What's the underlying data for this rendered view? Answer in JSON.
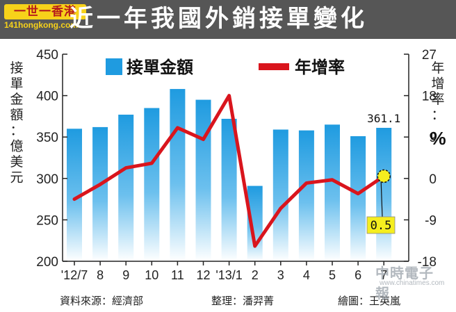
{
  "header": {
    "logo": "一世一香港",
    "logo_url": "141hongkong.com",
    "title": "近一年我國外銷接單變化"
  },
  "chart_data": {
    "type": "bar+line",
    "categories": [
      "'12/7",
      "8",
      "9",
      "10",
      "11",
      "12",
      "'13/1",
      "2",
      "3",
      "4",
      "5",
      "6",
      "7"
    ],
    "series": [
      {
        "name": "接單金額",
        "type": "bar",
        "axis": "left",
        "values": [
          360,
          362,
          377,
          385,
          408,
          395,
          372,
          291,
          359,
          358,
          365,
          351,
          361.1
        ]
      },
      {
        "name": "年增率",
        "type": "line",
        "axis": "right",
        "values": [
          -4.5,
          -1.3,
          2.3,
          3.3,
          11.0,
          8.5,
          18.0,
          -14.7,
          -6.5,
          -1.0,
          -0.3,
          -3.3,
          0.5
        ]
      }
    ],
    "left_axis": {
      "label": "接單金額：億美元",
      "ticks": [
        200,
        250,
        300,
        350,
        400,
        450
      ],
      "ylim": [
        200,
        450
      ]
    },
    "right_axis": {
      "label": "年增率：",
      "unit": "%",
      "ticks": [
        -18,
        -9,
        0,
        9,
        18,
        27
      ],
      "ylim": [
        -18,
        27
      ]
    },
    "annotations": {
      "last_bar_label": "361.1",
      "last_point_label": "0.5"
    },
    "legend": {
      "position": "top",
      "bar_label": "接單金額",
      "line_label": "年增率"
    },
    "grid": false
  },
  "footer": {
    "source": "資料來源：經濟部",
    "organizer": "整理：潘羿菁",
    "drawer": "繪圖：王英嵐"
  },
  "watermark": {
    "text_cn": "中時電子報",
    "text_en": "www.chinatimes.com"
  },
  "colors": {
    "header_bg": "#565656",
    "bar": "#1f9be0",
    "line": "#d9151d",
    "callout_bg": "#f5ee1f",
    "logo_bg": "#f7d21a"
  }
}
